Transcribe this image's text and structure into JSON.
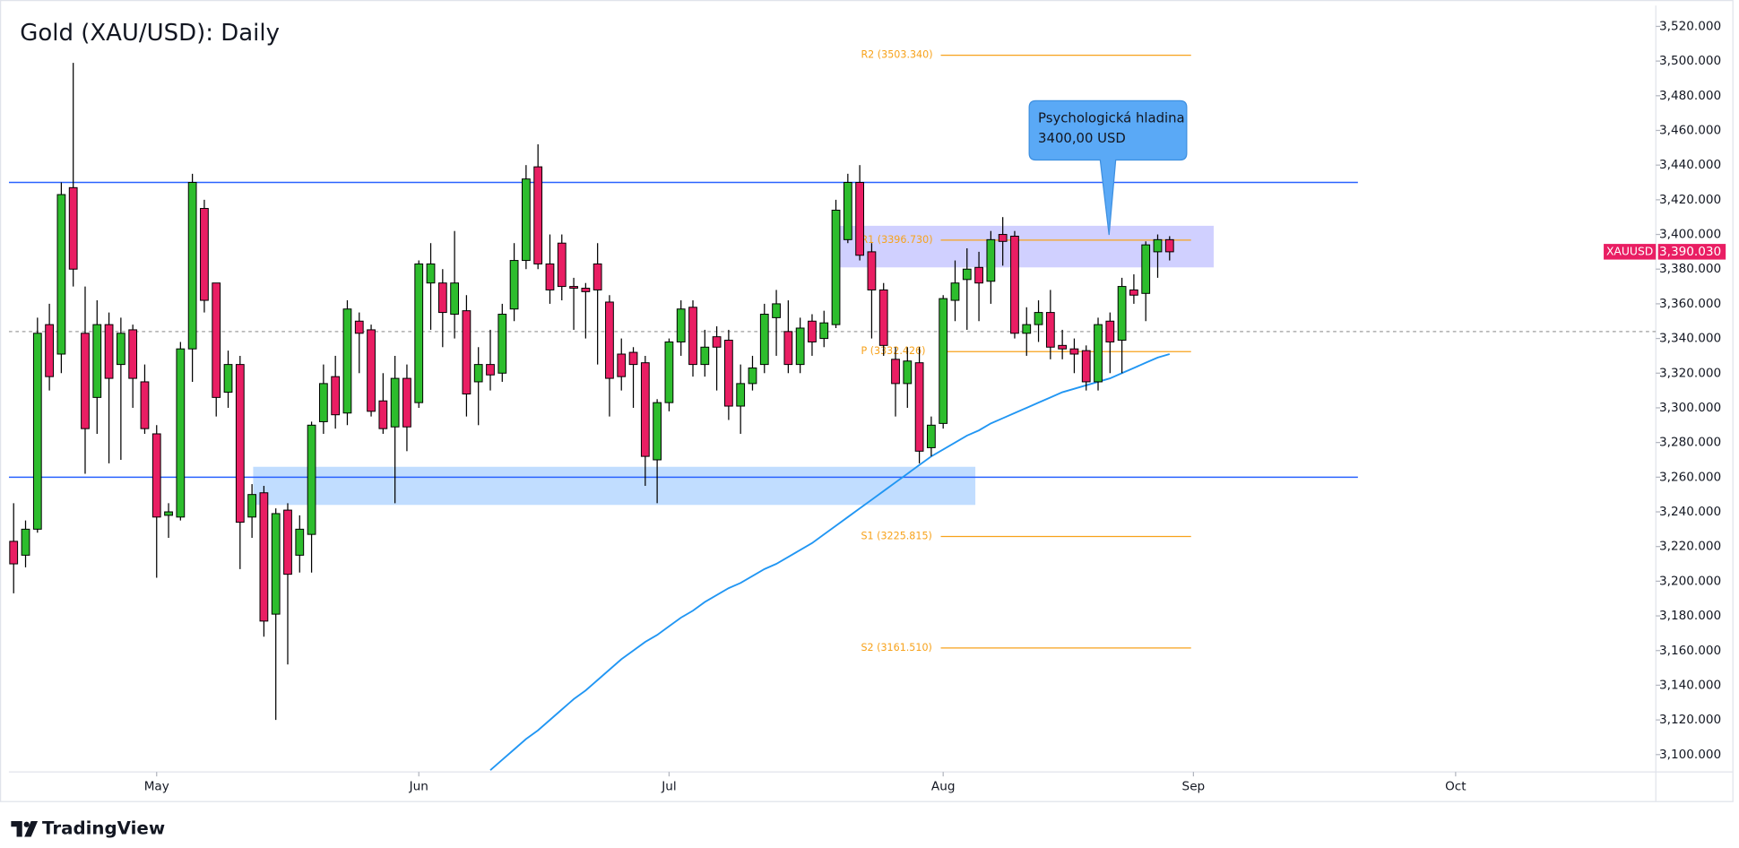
{
  "chart_data": {
    "type": "candlestick",
    "title": "Gold (XAU/USD): Daily",
    "xlim": [
      -0.4,
      137.8
    ],
    "xticks": [
      {
        "value": 12,
        "label": "May"
      },
      {
        "value": 34,
        "label": "Jun"
      },
      {
        "value": 55,
        "label": "Jul"
      },
      {
        "value": 78,
        "label": "Aug"
      },
      {
        "value": 99,
        "label": "Sep"
      },
      {
        "value": 121,
        "label": "Oct"
      }
    ],
    "ylim": [
      3090,
      3532
    ],
    "yticks": [
      {
        "value": 3100,
        "label": "3,100.000"
      },
      {
        "value": 3120,
        "label": "3,120.000"
      },
      {
        "value": 3140,
        "label": "3,140.000"
      },
      {
        "value": 3160,
        "label": "3,160.000"
      },
      {
        "value": 3180,
        "label": "3,180.000"
      },
      {
        "value": 3200,
        "label": "3,200.000"
      },
      {
        "value": 3220,
        "label": "3,220.000"
      },
      {
        "value": 3240,
        "label": "3,240.000"
      },
      {
        "value": 3260,
        "label": "3,260.000"
      },
      {
        "value": 3280,
        "label": "3,280.000"
      },
      {
        "value": 3300,
        "label": "3,300.000"
      },
      {
        "value": 3320,
        "label": "3,320.000"
      },
      {
        "value": 3340,
        "label": "3,340.000"
      },
      {
        "value": 3360,
        "label": "3,360.000"
      },
      {
        "value": 3380,
        "label": "3,380.000"
      },
      {
        "value": 3400,
        "label": "3,400.000"
      },
      {
        "value": 3420,
        "label": "3,420.000"
      },
      {
        "value": 3440,
        "label": "3,440.000"
      },
      {
        "value": 3460,
        "label": "3,460.000"
      },
      {
        "value": 3480,
        "label": "3,480.000"
      },
      {
        "value": 3500,
        "label": "3,500.000"
      },
      {
        "value": 3520,
        "label": "3,520.000"
      }
    ],
    "up_color": "#2dbd2d",
    "down_color": "#e91e63",
    "open": [
      3223,
      3215,
      3230,
      3348,
      3331,
      3427,
      3343,
      3306,
      3348,
      3325,
      3345,
      3315,
      3285,
      3238,
      3237,
      3334,
      3415,
      3372,
      3309,
      3325,
      3237,
      3251,
      3181,
      3241,
      3215,
      3227,
      3292,
      3318,
      3297,
      3350,
      3345,
      3304,
      3289,
      3317,
      3303,
      3372,
      3372,
      3354,
      3356,
      3315,
      3325,
      3320,
      3357,
      3385,
      3439,
      3383,
      3395,
      3370,
      3369,
      3383,
      3361,
      3331,
      3332,
      3326,
      3270,
      3303,
      3338,
      3358,
      3325,
      3341,
      3339,
      3301,
      3314,
      3325,
      3352,
      3344,
      3325,
      3350,
      3340,
      3348,
      3397,
      3430,
      3390,
      3368,
      3328,
      3314,
      3326,
      3277,
      3291,
      3362,
      3374,
      3381,
      3373,
      3400,
      3399,
      3343,
      3348,
      3355,
      3336,
      3334,
      3333,
      3315,
      3350,
      3339,
      3368,
      3366,
      3390,
      3397
    ],
    "high": [
      3245,
      3235,
      3352,
      3360,
      3430,
      3499,
      3370,
      3362,
      3355,
      3352,
      3348,
      3325,
      3290,
      3245,
      3338,
      3435,
      3420,
      3372,
      3333,
      3330,
      3256,
      3255,
      3242,
      3245,
      3238,
      3292,
      3325,
      3330,
      3362,
      3355,
      3348,
      3320,
      3330,
      3325,
      3385,
      3395,
      3380,
      3402,
      3365,
      3335,
      3345,
      3360,
      3395,
      3440,
      3452,
      3400,
      3400,
      3375,
      3372,
      3395,
      3365,
      3340,
      3335,
      3330,
      3305,
      3340,
      3362,
      3362,
      3345,
      3347,
      3345,
      3325,
      3330,
      3360,
      3368,
      3362,
      3352,
      3354,
      3356,
      3420,
      3435,
      3440,
      3395,
      3372,
      3335,
      3335,
      3335,
      3295,
      3365,
      3385,
      3392,
      3390,
      3402,
      3410,
      3402,
      3358,
      3362,
      3368,
      3345,
      3340,
      3336,
      3352,
      3355,
      3375,
      3377,
      3396,
      3400,
      3399
    ],
    "low": [
      3193,
      3208,
      3228,
      3310,
      3320,
      3370,
      3262,
      3285,
      3268,
      3270,
      3300,
      3285,
      3202,
      3225,
      3235,
      3315,
      3355,
      3295,
      3300,
      3207,
      3225,
      3168,
      3120,
      3152,
      3205,
      3205,
      3285,
      3288,
      3290,
      3320,
      3295,
      3285,
      3245,
      3275,
      3300,
      3345,
      3335,
      3340,
      3295,
      3290,
      3310,
      3315,
      3350,
      3380,
      3380,
      3360,
      3362,
      3345,
      3340,
      3325,
      3295,
      3310,
      3300,
      3255,
      3245,
      3298,
      3330,
      3318,
      3318,
      3310,
      3293,
      3285,
      3310,
      3320,
      3330,
      3320,
      3320,
      3330,
      3335,
      3346,
      3395,
      3385,
      3340,
      3330,
      3295,
      3300,
      3268,
      3272,
      3288,
      3350,
      3345,
      3350,
      3360,
      3382,
      3340,
      3330,
      3338,
      3328,
      3328,
      3320,
      3310,
      3310,
      3320,
      3320,
      3360,
      3350,
      3375,
      3385
    ],
    "close": [
      3210,
      3230,
      3343,
      3318,
      3423,
      3380,
      3288,
      3348,
      3317,
      3343,
      3317,
      3288,
      3237,
      3240,
      3334,
      3430,
      3362,
      3306,
      3325,
      3234,
      3250,
      3177,
      3239,
      3204,
      3230,
      3290,
      3314,
      3296,
      3357,
      3343,
      3298,
      3288,
      3317,
      3289,
      3383,
      3383,
      3355,
      3372,
      3308,
      3325,
      3319,
      3354,
      3385,
      3432,
      3383,
      3368,
      3370,
      3369,
      3367,
      3368,
      3317,
      3318,
      3325,
      3272,
      3303,
      3338,
      3357,
      3325,
      3335,
      3335,
      3301,
      3314,
      3323,
      3354,
      3360,
      3325,
      3346,
      3338,
      3349,
      3414,
      3430,
      3388,
      3368,
      3336,
      3314,
      3327,
      3275,
      3290,
      3363,
      3372,
      3380,
      3372,
      3397,
      3396,
      3343,
      3348,
      3355,
      3335,
      3334,
      3331,
      3315,
      3348,
      3338,
      3370,
      3365,
      3394,
      3397,
      3390
    ],
    "moving_average": {
      "color": "#2196f3",
      "values": [
        null,
        null,
        null,
        null,
        null,
        null,
        null,
        null,
        null,
        null,
        null,
        null,
        null,
        null,
        null,
        null,
        null,
        null,
        null,
        null,
        null,
        null,
        null,
        null,
        null,
        null,
        null,
        null,
        null,
        null,
        null,
        null,
        null,
        null,
        null,
        null,
        null,
        null,
        null,
        null,
        3091,
        3097,
        3103,
        3109,
        3114,
        3120,
        3126,
        3132,
        3137,
        3143,
        3149,
        3155,
        3160,
        3165,
        3169,
        3174,
        3179,
        3183,
        3188,
        3192,
        3196,
        3199,
        3203,
        3207,
        3210,
        3214,
        3218,
        3222,
        3227,
        3232,
        3237,
        3242,
        3247,
        3252,
        3257,
        3262,
        3267,
        3272,
        3276,
        3280,
        3284,
        3287,
        3291,
        3294,
        3297,
        3300,
        3303,
        3306,
        3309,
        3311,
        3313,
        3315,
        3317,
        3320,
        3323,
        3326,
        3329,
        3331
      ]
    },
    "horizontal_lines": [
      {
        "value": 3430,
        "end": 112.8,
        "color": "#2962ff"
      },
      {
        "value": 3260,
        "end": 112.8,
        "color": "#2962ff"
      }
    ],
    "dashed_level": {
      "value": 3344,
      "color": "#9e9e9e"
    },
    "zones": [
      {
        "low": 3244,
        "high": 3266,
        "start": 20.1,
        "end": 80.7,
        "color": "rgba(100,170,255,0.4)"
      },
      {
        "low": 3381,
        "high": 3405,
        "start": 68.9,
        "end": 100.7,
        "color": "rgba(120,120,255,0.35)"
      }
    ],
    "pivots": {
      "color": "#f7a21b",
      "label_at": 71.1,
      "start": 77.8,
      "end": 98.8,
      "levels": [
        {
          "label": "R2 (3503.340)",
          "value": 3503.34
        },
        {
          "label": "R1 (3396.730)",
          "value": 3396.73
        },
        {
          "label": "P (3332.426)",
          "value": 3332.426
        },
        {
          "label": "S1 (3225.815)",
          "value": 3225.815
        },
        {
          "label": "S2 (3161.510)",
          "value": 3161.51
        }
      ]
    },
    "callout": {
      "lines": [
        "Psychologická hladina",
        "3400,00 USD"
      ],
      "color": "#5aa9f6"
    },
    "last_price": {
      "symbol": "XAUUSD",
      "value": 3390.03,
      "label": "3,390.030",
      "color": "#e91e63"
    },
    "footer": "TradingView"
  }
}
